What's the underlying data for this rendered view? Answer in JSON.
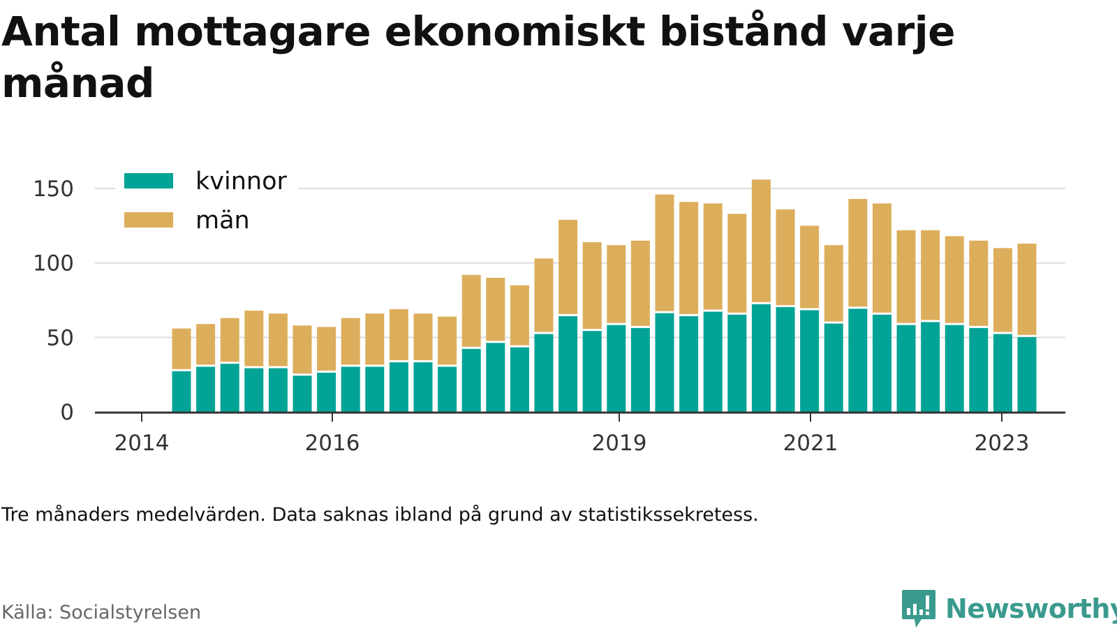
{
  "header": {
    "title": "Antal mottagare ekonomiskt bistånd varje månad"
  },
  "note": "Tre månaders medelvärden. Data saknas ibland på grund av statistikssekretess.",
  "source": "Källa: Socialstyrelsen",
  "brand": {
    "name": "Newsworthy",
    "icon": "newsworthy-bar-chart-icon",
    "color": "#3a9a8e"
  },
  "colors": {
    "kvinnor": "#00a396",
    "man": "#dcae5c",
    "grid": "#dddddd",
    "axis": "#333333"
  },
  "chart_data": {
    "type": "bar",
    "stacked": true,
    "title": "Antal mottagare ekonomiskt bistånd varje månad",
    "xlabel": "",
    "ylabel": "",
    "ylim": [
      0,
      160
    ],
    "yticks": [
      0,
      50,
      100,
      150
    ],
    "grid": true,
    "legend_position": "top-left",
    "x_tick_labels": [
      "2014",
      "2016",
      "2019",
      "2021",
      "2023"
    ],
    "categories": [
      "2014 Q3",
      "2014 Q4",
      "2015 Q1",
      "2015 Q2",
      "2015 Q3",
      "2015 Q4",
      "2016 Q1",
      "2016 Q2",
      "2016 Q3",
      "2016 Q4",
      "2017 Q1",
      "2017 Q2",
      "2017 Q3",
      "2017 Q4",
      "2018 Q1",
      "2018 Q2",
      "2018 Q3",
      "2018 Q4",
      "2019 Q1",
      "2019 Q2",
      "2019 Q3",
      "2019 Q4",
      "2020 Q1",
      "2020 Q2",
      "2020 Q3",
      "2020 Q4",
      "2021 Q1",
      "2021 Q2",
      "2021 Q3",
      "2021 Q4",
      "2022 Q1",
      "2022 Q2",
      "2022 Q3",
      "2022 Q4",
      "2023 Q1",
      "2023 Q2"
    ],
    "series": [
      {
        "name": "kvinnor",
        "values": [
          28,
          31,
          33,
          30,
          30,
          25,
          27,
          31,
          31,
          34,
          34,
          31,
          43,
          47,
          44,
          53,
          65,
          55,
          59,
          57,
          67,
          65,
          68,
          66,
          73,
          71,
          69,
          60,
          70,
          66,
          59,
          61,
          59,
          57,
          53,
          51
        ]
      },
      {
        "name": "män",
        "values": [
          28,
          28,
          30,
          38,
          36,
          33,
          30,
          32,
          35,
          35,
          32,
          33,
          49,
          43,
          41,
          50,
          64,
          59,
          53,
          58,
          79,
          76,
          72,
          67,
          83,
          65,
          56,
          52,
          73,
          74,
          63,
          61,
          59,
          58,
          57,
          62
        ]
      }
    ]
  }
}
